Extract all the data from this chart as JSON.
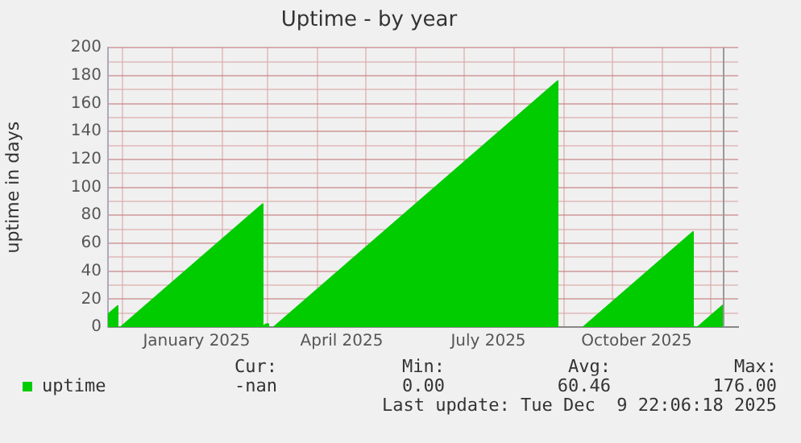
{
  "chart_data": {
    "type": "area",
    "title": "Uptime - by year",
    "ylabel": "uptime in days",
    "x": [
      "2024-11-22",
      "2024-11-28",
      "2024-11-28",
      "2024-11-29",
      "2024-11-30",
      "2025-02-26",
      "2025-02-26",
      "2025-02-28",
      "2025-03-02",
      "2025-03-03",
      "2025-03-05",
      "2025-08-28",
      "2025-08-28",
      "2025-08-29",
      "2025-09-13",
      "2025-11-20",
      "2025-11-20",
      "2025-11-23",
      "2025-12-09"
    ],
    "series": [
      {
        "name": "uptime",
        "color": "#00cc00",
        "values": [
          9,
          15,
          0,
          null,
          0,
          88,
          0,
          2,
          2,
          null,
          0,
          176,
          0,
          null,
          0,
          68,
          0,
          0,
          16
        ]
      }
    ],
    "xlim": [
      "2024-11-22",
      "2025-12-18"
    ],
    "xticks": [
      {
        "value": "2024-12-01",
        "label": null
      },
      {
        "value": "2025-01-01",
        "label": null
      },
      {
        "value": "2025-01-16",
        "label": "January 2025"
      },
      {
        "value": "2025-02-01",
        "label": null
      },
      {
        "value": "2025-03-01",
        "label": null
      },
      {
        "value": "2025-04-01",
        "label": null
      },
      {
        "value": "2025-04-16",
        "label": "April 2025"
      },
      {
        "value": "2025-05-01",
        "label": null
      },
      {
        "value": "2025-06-01",
        "label": null
      },
      {
        "value": "2025-07-01",
        "label": null
      },
      {
        "value": "2025-07-16",
        "label": "July 2025"
      },
      {
        "value": "2025-08-01",
        "label": null
      },
      {
        "value": "2025-09-01",
        "label": null
      },
      {
        "value": "2025-10-01",
        "label": null
      },
      {
        "value": "2025-10-16",
        "label": "October 2025"
      },
      {
        "value": "2025-11-01",
        "label": null
      },
      {
        "value": "2025-12-01",
        "label": null
      }
    ],
    "ylim": [
      0,
      200
    ],
    "yticks": [
      0,
      {
        "value": 10,
        "label": null
      },
      20,
      {
        "value": 30,
        "label": null
      },
      40,
      {
        "value": 50,
        "label": null
      },
      60,
      {
        "value": 70,
        "label": null
      },
      80,
      {
        "value": 90,
        "label": null
      },
      100,
      {
        "value": 110,
        "label": null
      },
      120,
      {
        "value": 130,
        "label": null
      },
      140,
      {
        "value": 150,
        "label": null
      },
      160,
      {
        "value": 170,
        "label": null
      },
      180,
      {
        "value": 190,
        "label": null
      },
      200
    ],
    "ref_lines": [
      {
        "axis": "x",
        "value": "2025-12-09",
        "color": "#999999"
      }
    ],
    "grid": true,
    "legend": "bottom",
    "annotations": [
      "Cur:",
      "-nan",
      "Min:",
      "0.00",
      "Avg:",
      "60.46",
      "Max:",
      "176.00",
      "Last update: Tue Dec  9 22:06:18 2025"
    ]
  }
}
